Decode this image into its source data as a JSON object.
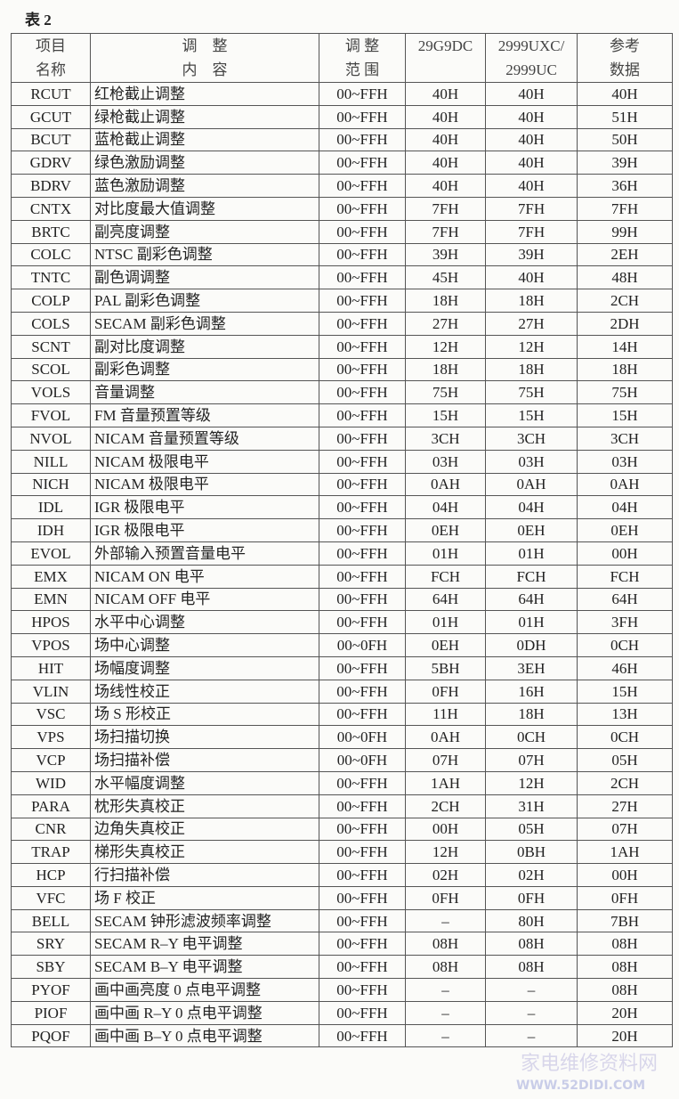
{
  "caption": "表 2",
  "headers": {
    "name": [
      "项目",
      "名称"
    ],
    "content": [
      "调　整",
      "内　容"
    ],
    "range": [
      "调 整",
      "范 围"
    ],
    "model1": "29G9DC",
    "model2": [
      "2999UXC/",
      "2999UC"
    ],
    "reference": [
      "参考",
      "数据"
    ]
  },
  "rows": [
    [
      "RCUT",
      "红枪截止调整",
      "00~FFH",
      "40H",
      "40H",
      "40H"
    ],
    [
      "GCUT",
      "绿枪截止调整",
      "00~FFH",
      "40H",
      "40H",
      "51H"
    ],
    [
      "BCUT",
      "蓝枪截止调整",
      "00~FFH",
      "40H",
      "40H",
      "50H"
    ],
    [
      "GDRV",
      "绿色激励调整",
      "00~FFH",
      "40H",
      "40H",
      "39H"
    ],
    [
      "BDRV",
      "蓝色激励调整",
      "00~FFH",
      "40H",
      "40H",
      "36H"
    ],
    [
      "CNTX",
      "对比度最大值调整",
      "00~FFH",
      "7FH",
      "7FH",
      "7FH"
    ],
    [
      "BRTC",
      "副亮度调整",
      "00~FFH",
      "7FH",
      "7FH",
      "99H"
    ],
    [
      "COLC",
      "NTSC 副彩色调整",
      "00~FFH",
      "39H",
      "39H",
      "2EH"
    ],
    [
      "TNTC",
      "副色调调整",
      "00~FFH",
      "45H",
      "40H",
      "48H"
    ],
    [
      "COLP",
      "PAL 副彩色调整",
      "00~FFH",
      "18H",
      "18H",
      "2CH"
    ],
    [
      "COLS",
      "SECAM 副彩色调整",
      "00~FFH",
      "27H",
      "27H",
      "2DH"
    ],
    [
      "SCNT",
      "副对比度调整",
      "00~FFH",
      "12H",
      "12H",
      "14H"
    ],
    [
      "SCOL",
      "副彩色调整",
      "00~FFH",
      "18H",
      "18H",
      "18H"
    ],
    [
      "VOLS",
      "音量调整",
      "00~FFH",
      "75H",
      "75H",
      "75H"
    ],
    [
      "FVOL",
      "FM 音量预置等级",
      "00~FFH",
      "15H",
      "15H",
      "15H"
    ],
    [
      "NVOL",
      "NICAM 音量预置等级",
      "00~FFH",
      "3CH",
      "3CH",
      "3CH"
    ],
    [
      "NILL",
      "NICAM 极限电平",
      "00~FFH",
      "03H",
      "03H",
      "03H"
    ],
    [
      "NICH",
      "NICAM 极限电平",
      "00~FFH",
      "0AH",
      "0AH",
      "0AH"
    ],
    [
      "IDL",
      "IGR 极限电平",
      "00~FFH",
      "04H",
      "04H",
      "04H"
    ],
    [
      "IDH",
      "IGR 极限电平",
      "00~FFH",
      "0EH",
      "0EH",
      "0EH"
    ],
    [
      "EVOL",
      "外部输入预置音量电平",
      "00~FFH",
      "01H",
      "01H",
      "00H"
    ],
    [
      "EMX",
      "NICAM ON 电平",
      "00~FFH",
      "FCH",
      "FCH",
      "FCH"
    ],
    [
      "EMN",
      "NICAM OFF 电平",
      "00~FFH",
      "64H",
      "64H",
      "64H"
    ],
    [
      "HPOS",
      "水平中心调整",
      "00~FFH",
      "01H",
      "01H",
      "3FH"
    ],
    [
      "VPOS",
      "场中心调整",
      "00~0FH",
      "0EH",
      "0DH",
      "0CH"
    ],
    [
      "HIT",
      "场幅度调整",
      "00~FFH",
      "5BH",
      "3EH",
      "46H"
    ],
    [
      "VLIN",
      "场线性校正",
      "00~FFH",
      "0FH",
      "16H",
      "15H"
    ],
    [
      "VSC",
      "场 S 形校正",
      "00~FFH",
      "11H",
      "18H",
      "13H"
    ],
    [
      "VPS",
      "场扫描切换",
      "00~0FH",
      "0AH",
      "0CH",
      "0CH"
    ],
    [
      "VCP",
      "场扫描补偿",
      "00~0FH",
      "07H",
      "07H",
      "05H"
    ],
    [
      "WID",
      "水平幅度调整",
      "00~FFH",
      "1AH",
      "12H",
      "2CH"
    ],
    [
      "PARA",
      "枕形失真校正",
      "00~FFH",
      "2CH",
      "31H",
      "27H"
    ],
    [
      "CNR",
      "边角失真校正",
      "00~FFH",
      "00H",
      "05H",
      "07H"
    ],
    [
      "TRAP",
      "梯形失真校正",
      "00~FFH",
      "12H",
      "0BH",
      "1AH"
    ],
    [
      "HCP",
      "行扫描补偿",
      "00~FFH",
      "02H",
      "02H",
      "00H"
    ],
    [
      "VFC",
      "场 F 校正",
      "00~FFH",
      "0FH",
      "0FH",
      "0FH"
    ],
    [
      "BELL",
      "SECAM 钟形滤波频率调整",
      "00~FFH",
      "–",
      "80H",
      "7BH"
    ],
    [
      "SRY",
      "SECAM R–Y 电平调整",
      "00~FFH",
      "08H",
      "08H",
      "08H"
    ],
    [
      "SBY",
      "SECAM B–Y 电平调整",
      "00~FFH",
      "08H",
      "08H",
      "08H"
    ],
    [
      "PYOF",
      "画中画亮度 0 点电平调整",
      "00~FFH",
      "–",
      "–",
      "08H"
    ],
    [
      "PIOF",
      "画中画 R–Y 0 点电平调整",
      "00~FFH",
      "–",
      "–",
      "20H"
    ],
    [
      "PQOF",
      "画中画 B–Y 0 点电平调整",
      "00~FFH",
      "–",
      "–",
      "20H"
    ]
  ],
  "watermark": [
    "家电维修资料网",
    "WWW.52DIDI.COM"
  ]
}
